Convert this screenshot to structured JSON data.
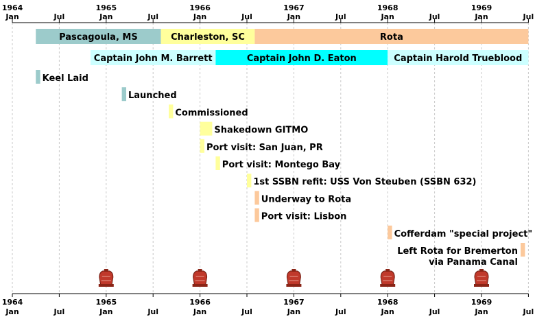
{
  "chart_data": {
    "type": "timeline",
    "x_axis": {
      "ticks": [
        {
          "year": "1964",
          "month": "Jan"
        },
        {
          "year": "",
          "month": "Jul"
        },
        {
          "year": "1965",
          "month": "Jan"
        },
        {
          "year": "",
          "month": "Jul"
        },
        {
          "year": "1966",
          "month": "Jan"
        },
        {
          "year": "",
          "month": "Jul"
        },
        {
          "year": "1967",
          "month": "Jan"
        },
        {
          "year": "",
          "month": "Jul"
        },
        {
          "year": "1968",
          "month": "Jan"
        },
        {
          "year": "",
          "month": "Jul"
        },
        {
          "year": "1969",
          "month": "Jan"
        },
        {
          "year": "",
          "month": "Jul"
        }
      ],
      "range": [
        "1964-01",
        "1969-07"
      ]
    },
    "grid": "vertical dashed",
    "homeports": [
      {
        "label": "Pascagoula, MS",
        "start": "1964-04",
        "end": "1965-08",
        "color": "#9ccbcb"
      },
      {
        "label": "Charleston, SC",
        "start": "1965-08",
        "end": "1966-08",
        "color": "#ffff9c"
      },
      {
        "label": "Rota",
        "start": "1966-08",
        "end": "1969-07",
        "color": "#fcc99c"
      }
    ],
    "captains": [
      {
        "label": "Captain John M. Barrett",
        "start": "1964-11",
        "end": "1966-03",
        "color": "#ccffff"
      },
      {
        "label": "Captain John D. Eaton",
        "start": "1966-03",
        "end": "1968-01",
        "color": "#00ffff"
      },
      {
        "label": "Captain Harold Trueblood",
        "start": "1968-01",
        "end": "1969-07",
        "color": "#ccffff"
      }
    ],
    "events": [
      {
        "label": "Keel Laid",
        "start": "1964-04",
        "end": "1964-04",
        "color": "#9ccbcb"
      },
      {
        "label": "Launched",
        "start": "1965-03",
        "end": "1965-03",
        "color": "#9ccbcb"
      },
      {
        "label": "Commissioned",
        "start": "1965-09",
        "end": "1965-09",
        "color": "#ffff9c"
      },
      {
        "label": "Shakedown GITMO",
        "start": "1966-01",
        "end": "1966-02",
        "color": "#ffff9c"
      },
      {
        "label": "Port visit: San Juan, PR",
        "start": "1966-01",
        "end": "1966-01",
        "color": "#ffff9c"
      },
      {
        "label": "Port visit: Montego Bay",
        "start": "1966-03",
        "end": "1966-03",
        "color": "#ffff9c"
      },
      {
        "label": "1st SSBN refit: USS Von Steuben (SSBN 632)",
        "start": "1966-07",
        "end": "1966-07",
        "color": "#ffff9c"
      },
      {
        "label": "Underway to Rota",
        "start": "1966-08",
        "end": "1966-08",
        "color": "#fcc99c"
      },
      {
        "label": "Port visit: Lisbon",
        "start": "1966-08",
        "end": "1966-08",
        "color": "#fcc99c"
      },
      {
        "label": "Cofferdam \"special project\"",
        "start": "1968-01",
        "end": "1968-01",
        "color": "#fcc99c"
      },
      {
        "label": "Left Rota for Bremerton via Panama Canal",
        "label_lines": [
          "Left Rota for Bremerton",
          "via Panama Canal"
        ],
        "label_align": "right",
        "start": "1969-06",
        "end": "1969-06",
        "color": "#fcc99c"
      }
    ],
    "markers": {
      "icon": "bell-icon",
      "dates": [
        "1965-01",
        "1966-01",
        "1967-01",
        "1968-01",
        "1969-01"
      ],
      "color": "#c0392b"
    }
  }
}
